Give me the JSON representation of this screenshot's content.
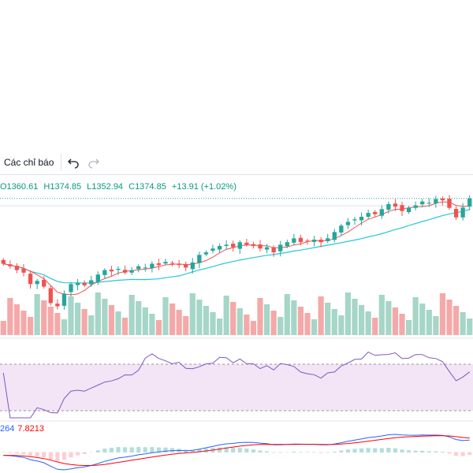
{
  "toolbar": {
    "indicators_label": "Các chỉ báo",
    "undo_icon": "undo-icon",
    "redo_icon": "redo-icon"
  },
  "legend": {
    "open": "O1360.61",
    "high": "H1374.85",
    "low": "L1352.94",
    "close": "C1374.85",
    "change": "+13.91 (+1.02%)"
  },
  "macd": {
    "value_a": "264",
    "value_b": "7.8213"
  },
  "colors": {
    "up": "#26a69a",
    "down": "#ef5350",
    "ma_fast": "#ef5350",
    "ma_slow": "#26c6da",
    "rsi_line": "#7e57c2",
    "rsi_band": "#f3e5f5",
    "macd_line": "#2962ff",
    "signal_line": "#ff0000"
  },
  "chart_data": {
    "type": "candlestick",
    "closes": [
      1272,
      1268,
      1262,
      1258,
      1240,
      1245,
      1236,
      1210,
      1205,
      1225,
      1240,
      1242,
      1238,
      1246,
      1255,
      1262,
      1260,
      1264,
      1258,
      1262,
      1268,
      1266,
      1272,
      1270,
      1275,
      1272,
      1270,
      1266,
      1274,
      1286,
      1290,
      1296,
      1300,
      1302,
      1298,
      1306,
      1302,
      1300,
      1296,
      1298,
      1290,
      1302,
      1306,
      1312,
      1306,
      1308,
      1310,
      1306,
      1312,
      1322,
      1332,
      1338,
      1342,
      1346,
      1352,
      1350,
      1358,
      1366,
      1362,
      1355,
      1360,
      1364,
      1370,
      1368,
      1374,
      1372,
      1360,
      1345,
      1360.61,
      1374.85
    ],
    "rsi_guides": [
      70,
      30
    ],
    "volume_note": "bars beneath price"
  }
}
